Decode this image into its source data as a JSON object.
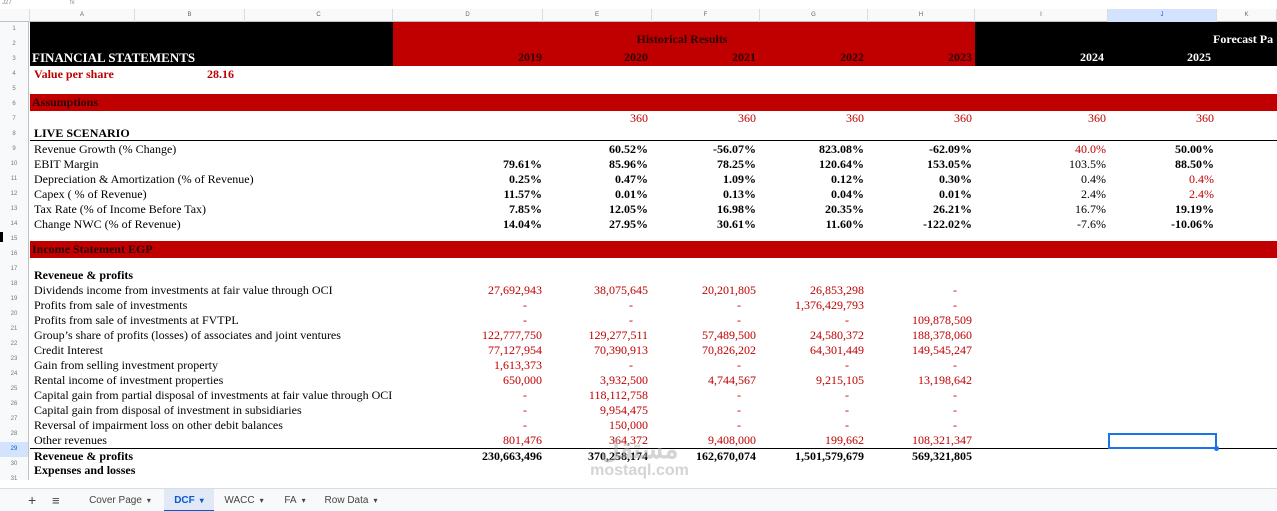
{
  "topbar": {
    "cell_ref": "J27",
    "formula_hint": "fx"
  },
  "columns": [
    "A",
    "B",
    "C",
    "D",
    "E",
    "F",
    "G",
    "H",
    "I",
    "J",
    "K"
  ],
  "selected_column": "J",
  "header": {
    "title": "FINANCIAL STATEMENTS",
    "value_per_share_label": "Value per share",
    "value_per_share": "28.16",
    "historical_label": "Historical Results",
    "forecast_label": "Forecast Pa",
    "years": [
      "2019",
      "2020",
      "2021",
      "2022",
      "2023",
      "2024",
      "2025"
    ]
  },
  "assumptions": {
    "band_label": "Assumptions",
    "days": [
      "360",
      "360",
      "360",
      "360",
      "360",
      "360"
    ],
    "scenario_label": "LIVE SCENARIO",
    "rows": [
      {
        "label": "Revenue Growth (% Change)",
        "vals": [
          "",
          "60.52%",
          "-56.07%",
          "823.08%",
          "-62.09%",
          "40.0%",
          "50.00%"
        ]
      },
      {
        "label": "EBIT Margin",
        "vals": [
          "79.61%",
          "85.96%",
          "78.25%",
          "120.64%",
          "153.05%",
          "103.5%",
          "88.50%"
        ]
      },
      {
        "label": "Depreciation & Amortization (% of Revenue)",
        "vals": [
          "0.25%",
          "0.47%",
          "1.09%",
          "0.12%",
          "0.30%",
          "0.4%",
          "0.4%"
        ]
      },
      {
        "label": "Capex ( % of Revenue)",
        "vals": [
          "11.57%",
          "0.01%",
          "0.13%",
          "0.04%",
          "0.01%",
          "2.4%",
          "2.4%"
        ]
      },
      {
        "label": "Tax Rate (% of Income Before Tax)",
        "vals": [
          "7.85%",
          "12.05%",
          "16.98%",
          "20.35%",
          "26.21%",
          "16.7%",
          "19.19%"
        ]
      },
      {
        "label": "Change NWC (% of Revenue)",
        "vals": [
          "14.04%",
          "27.95%",
          "30.61%",
          "11.60%",
          "-122.02%",
          "-7.6%",
          "-10.06%"
        ]
      }
    ]
  },
  "income": {
    "band_label": "Income Statement EGP",
    "section_label": "Reveneue & profits",
    "rows": [
      {
        "label": "Dividends income from investments at fair value through OCI",
        "vals": [
          "27,692,943",
          "38,075,645",
          "20,201,805",
          "26,853,298",
          "-"
        ]
      },
      {
        "label": "Profits from sale of investments",
        "vals": [
          "-",
          "-",
          "-",
          "1,376,429,793",
          "-"
        ]
      },
      {
        "label": "Profits from sale of investments at FVTPL",
        "vals": [
          "-",
          "-",
          "-",
          "-",
          "109,878,509"
        ]
      },
      {
        "label": "Group’s share of profits (losses) of associates and joint ventures",
        "vals": [
          "122,777,750",
          "129,277,511",
          "57,489,500",
          "24,580,372",
          "188,378,060"
        ]
      },
      {
        "label": "Credit Interest",
        "vals": [
          "77,127,954",
          "70,390,913",
          "70,826,202",
          "64,301,449",
          "149,545,247"
        ]
      },
      {
        "label": "Gain from selling investment property",
        "vals": [
          "1,613,373",
          "-",
          "-",
          "-",
          "-"
        ]
      },
      {
        "label": "Rental income of investment properties",
        "vals": [
          "650,000",
          "3,932,500",
          "4,744,567",
          "9,215,105",
          "13,198,642"
        ]
      },
      {
        "label": "Capital gain from partial disposal of investments at fair value through OCI",
        "vals": [
          "-",
          "118,112,758",
          "-",
          "-",
          "-"
        ]
      },
      {
        "label": "Capital gain from disposal of investment in subsidiaries",
        "vals": [
          "-",
          "9,954,475",
          "-",
          "-",
          "-"
        ]
      },
      {
        "label": "Reversal of impairment loss on other debit balances",
        "vals": [
          "-",
          "150,000",
          "-",
          "-",
          "-"
        ]
      },
      {
        "label": "Other revenues",
        "vals": [
          "801,476",
          "364,372",
          "9,408,000",
          "199,662",
          "108,321,347"
        ]
      }
    ],
    "total_label": "Reveneue & profits",
    "total_vals": [
      "230,663,496",
      "370,258,174",
      "162,670,074",
      "1,501,579,679",
      "569,321,805"
    ],
    "expenses_label": "Expenses and losses"
  },
  "tabs": [
    "Cover Page",
    "DCF",
    "WACC",
    "FA",
    "Row Data"
  ],
  "active_tab": "DCF",
  "watermark": {
    "arabic": "مستقل",
    "latin": "mostaql.com"
  },
  "colors": {
    "black_band": "#000000",
    "red_band": "#c00000",
    "red_text": "#c00000",
    "selection": "#1a73e8"
  }
}
